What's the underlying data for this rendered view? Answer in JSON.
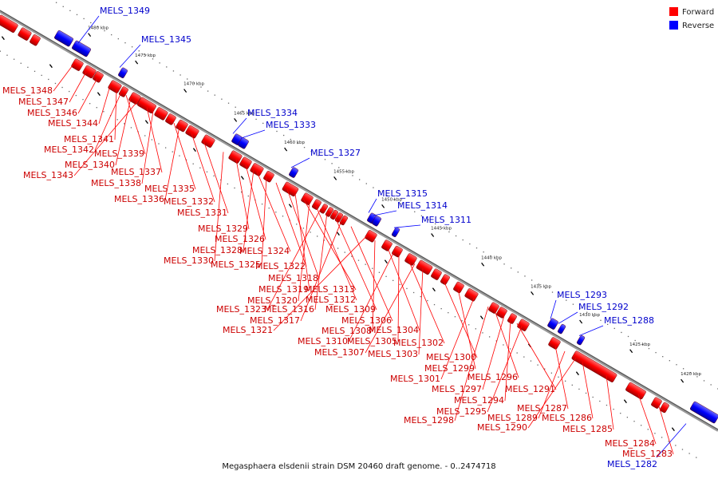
{
  "caption": "Megasphaera elsdenii strain DSM 20460 draft genome. - 0..2474718",
  "legend": [
    {
      "label": "Forward",
      "color": "#ff0000"
    },
    {
      "label": "Reverse",
      "color": "#0000ff"
    }
  ],
  "colors": {
    "forward": "#ff0000",
    "reverse": "#0000ff",
    "backbone": "#999999"
  },
  "ticks": [
    "1480 kbp",
    "1475 kbp",
    "1470 kbp",
    "1465 kbp",
    "1460 kbp",
    "1455 kbp",
    "1450 kbp",
    "1445 kbp",
    "1440 kbp",
    "1435 kbp",
    "1430 kbp",
    "1425 kbp",
    "1420 kbp"
  ],
  "reverse_labels": [
    "MELS_1349",
    "MELS_1345",
    "MELS_1334",
    "MELS_1333",
    "MELS_1327",
    "MELS_1315",
    "MELS_1314",
    "MELS_1311",
    "MELS_1293",
    "MELS_1292",
    "MELS_1288",
    "MELS_1282"
  ],
  "forward_labels": [
    "MELS_1348",
    "MELS_1347",
    "MELS_1346",
    "MELS_1344",
    "MELS_1341",
    "MELS_1342",
    "MELS_1339",
    "MELS_1340",
    "MELS_1343",
    "MELS_1337",
    "MELS_1338",
    "MELS_1335",
    "MELS_1336",
    "MELS_1332",
    "MELS_1331",
    "MELS_1329",
    "MELS_1326",
    "MELS_1328",
    "MELS_1324",
    "MELS_1330",
    "MELS_1325",
    "MELS_1322",
    "MELS_1318",
    "MELS_1319",
    "MELS_1313",
    "MELS_1320",
    "MELS_1312",
    "MELS_1323",
    "MELS_1316",
    "MELS_1309",
    "MELS_1317",
    "MELS_1306",
    "MELS_1321",
    "MELS_1308",
    "MELS_1304",
    "MELS_1310",
    "MELS_1305",
    "MELS_1302",
    "MELS_1307",
    "MELS_1303",
    "MELS_1300",
    "MELS_1299",
    "MELS_1301",
    "MELS_1296",
    "MELS_1297",
    "MELS_1291",
    "MELS_1294",
    "MELS_1295",
    "MELS_1287",
    "MELS_1298",
    "MELS_1289",
    "MELS_1286",
    "MELS_1290",
    "MELS_1285",
    "MELS_1284",
    "MELS_1283"
  ]
}
